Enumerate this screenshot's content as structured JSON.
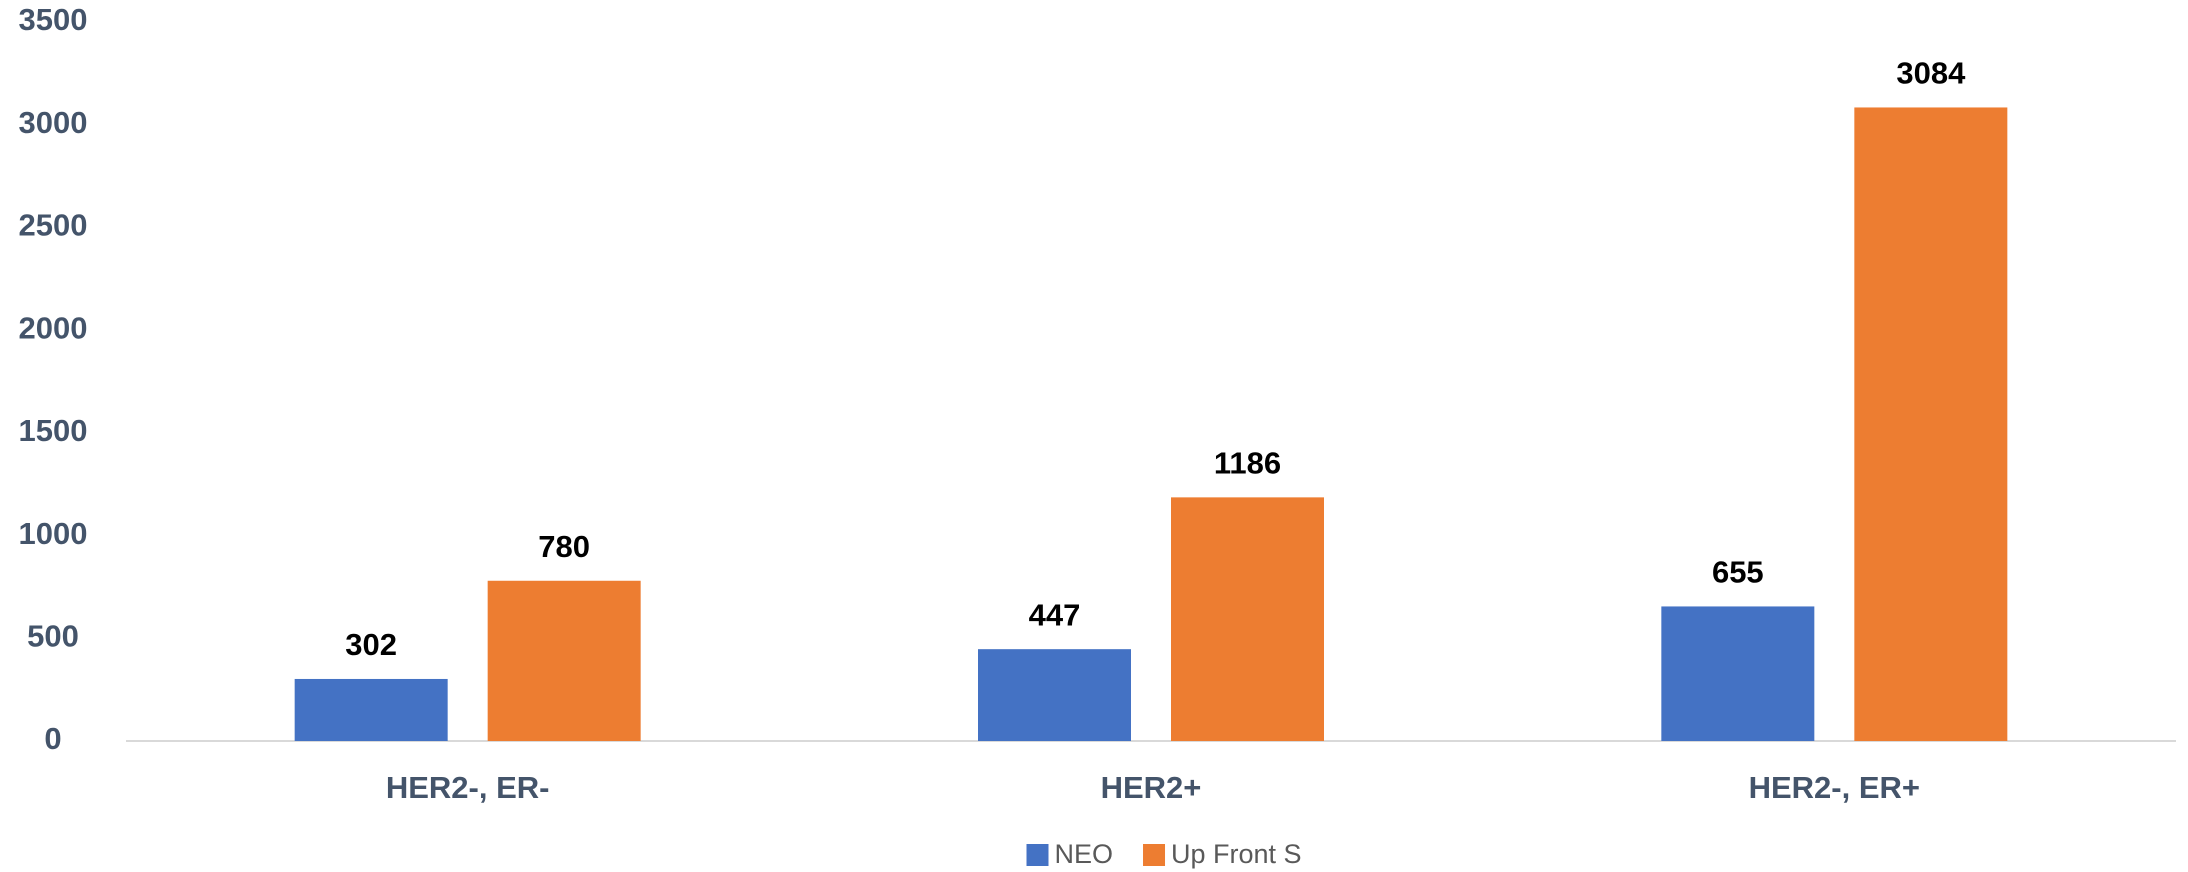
{
  "chart_data": {
    "type": "bar",
    "categories": [
      "HER2-, ER-",
      "HER2+",
      "HER2-, ER+"
    ],
    "series": [
      {
        "name": "NEO",
        "color": "#4472c4",
        "values": [
          302,
          447,
          655
        ]
      },
      {
        "name": "Up Front S",
        "color": "#ed7d31",
        "values": [
          780,
          1186,
          3084
        ]
      }
    ],
    "ylim": [
      0,
      3500
    ],
    "yticks": [
      0,
      500,
      1000,
      1500,
      2000,
      2500,
      3000,
      3500
    ],
    "grid": false,
    "legend": "bottom"
  }
}
